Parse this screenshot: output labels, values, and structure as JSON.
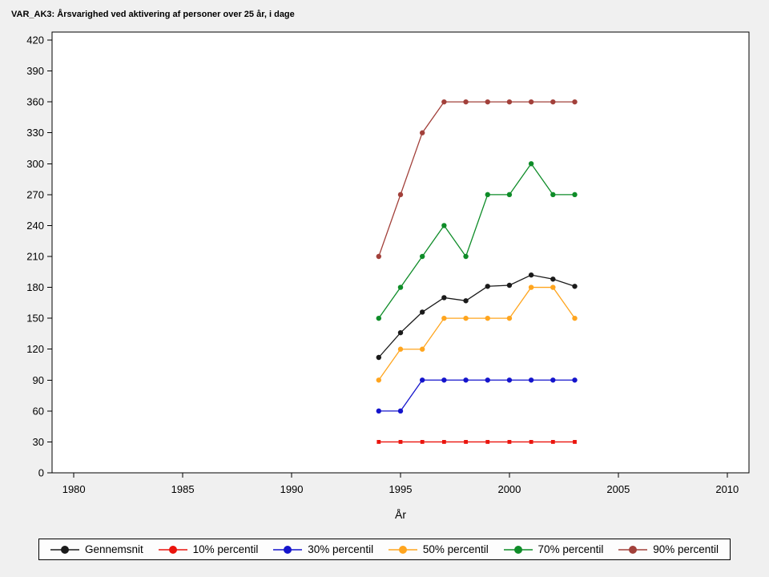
{
  "title": "VAR_AK3: Årsvarighed ved aktivering af personer over 25 år, i dage",
  "chart_data": {
    "type": "line",
    "x": [
      1994,
      1995,
      1996,
      1997,
      1998,
      1999,
      2000,
      2001,
      2002,
      2003
    ],
    "series": [
      {
        "name": "Gennemsnit",
        "color": "#1a1a1a",
        "marker": "circle",
        "values": [
          112,
          136,
          156,
          170,
          167,
          181,
          182,
          192,
          188,
          181
        ]
      },
      {
        "name": "10% percentil",
        "color": "#ea130c",
        "marker": "square",
        "values": [
          30,
          30,
          30,
          30,
          30,
          30,
          30,
          30,
          30,
          30
        ]
      },
      {
        "name": "30% percentil",
        "color": "#1414cc",
        "marker": "circle",
        "values": [
          60,
          60,
          90,
          90,
          90,
          90,
          90,
          90,
          90,
          90
        ]
      },
      {
        "name": "50% percentil",
        "color": "#ffa51e",
        "marker": "circle",
        "values": [
          90,
          120,
          120,
          150,
          150,
          150,
          150,
          180,
          180,
          150
        ]
      },
      {
        "name": "70% percentil",
        "color": "#0e8c28",
        "marker": "circle",
        "values": [
          150,
          180,
          210,
          240,
          210,
          270,
          270,
          300,
          270,
          270
        ]
      },
      {
        "name": "90% percentil",
        "color": "#a2403a",
        "marker": "circle",
        "values": [
          210,
          270,
          330,
          360,
          360,
          360,
          360,
          360,
          360,
          360
        ]
      }
    ],
    "title": "VAR_AK3: Årsvarighed ved aktivering af personer over 25 år, i dage",
    "xlabel": "År",
    "ylabel": "",
    "xlim": [
      1979,
      2011
    ],
    "ylim": [
      0,
      420
    ],
    "xticks": [
      1980,
      1985,
      1990,
      1995,
      2000,
      2005,
      2010
    ],
    "yticks": [
      0,
      30,
      60,
      90,
      120,
      150,
      180,
      210,
      240,
      270,
      300,
      330,
      360,
      390,
      420
    ],
    "grid": false,
    "legend_position": "bottom"
  },
  "colors": {
    "page_bg": "#f0f0f0",
    "plot_bg": "#ffffff",
    "axis": "#000000",
    "legend_bg": "#fdfdfd"
  }
}
